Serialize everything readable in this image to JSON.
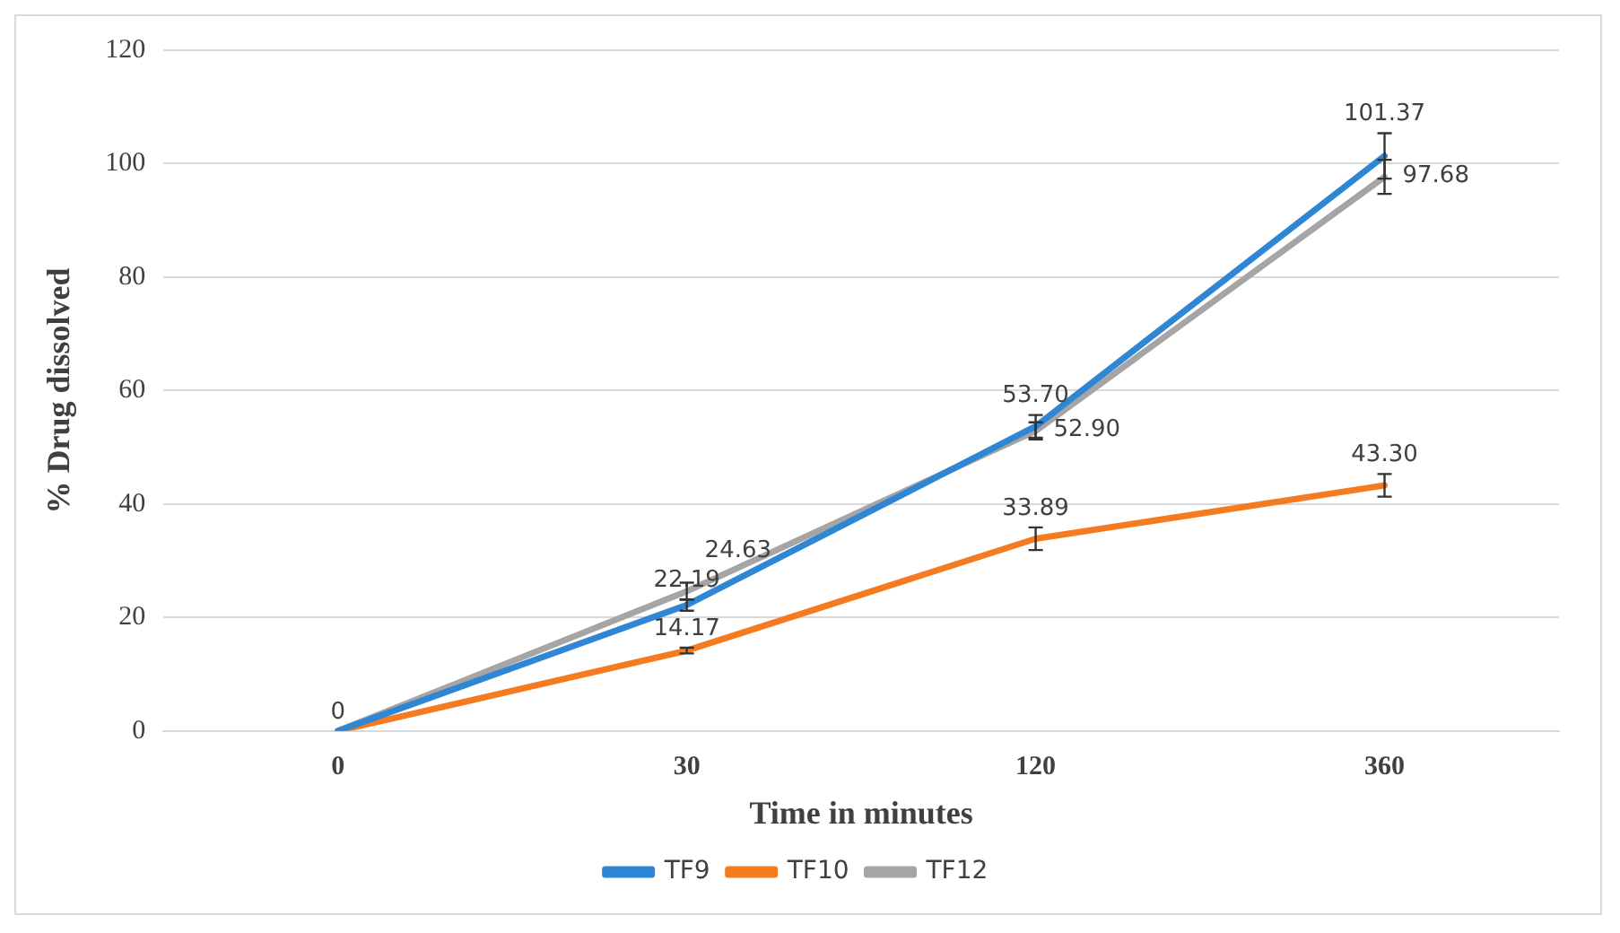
{
  "chart_data": {
    "type": "line",
    "xlabel": "Time in minutes",
    "ylabel": "% Drug dissolved",
    "categories": [
      "0",
      "30",
      "120",
      "360"
    ],
    "series": [
      {
        "name": "TF9",
        "color": "#2e86d4",
        "values": [
          0,
          22.19,
          53.7,
          101.37
        ],
        "errors": [
          null,
          1,
          2,
          4
        ],
        "value_labels": [
          "0",
          "22.19",
          "53.70",
          "101.37"
        ]
      },
      {
        "name": "TF10",
        "color": "#f47b20",
        "values": [
          0,
          14.17,
          33.89,
          43.3
        ],
        "errors": [
          null,
          0.5,
          2,
          2
        ],
        "value_labels": [
          null,
          "14.17",
          "33.89",
          "43.30"
        ]
      },
      {
        "name": "TF12",
        "color": "#a5a5a5",
        "values": [
          0,
          24.63,
          52.9,
          97.68
        ],
        "errors": [
          null,
          1.5,
          1.5,
          3
        ],
        "value_labels": [
          null,
          "24.63",
          "52.90",
          "97.68"
        ]
      }
    ],
    "ylim": [
      0,
      120
    ],
    "yticks": [
      0,
      20,
      40,
      60,
      80,
      100,
      120
    ],
    "grid": "y",
    "legend": "bottom",
    "line_style": "solid"
  }
}
